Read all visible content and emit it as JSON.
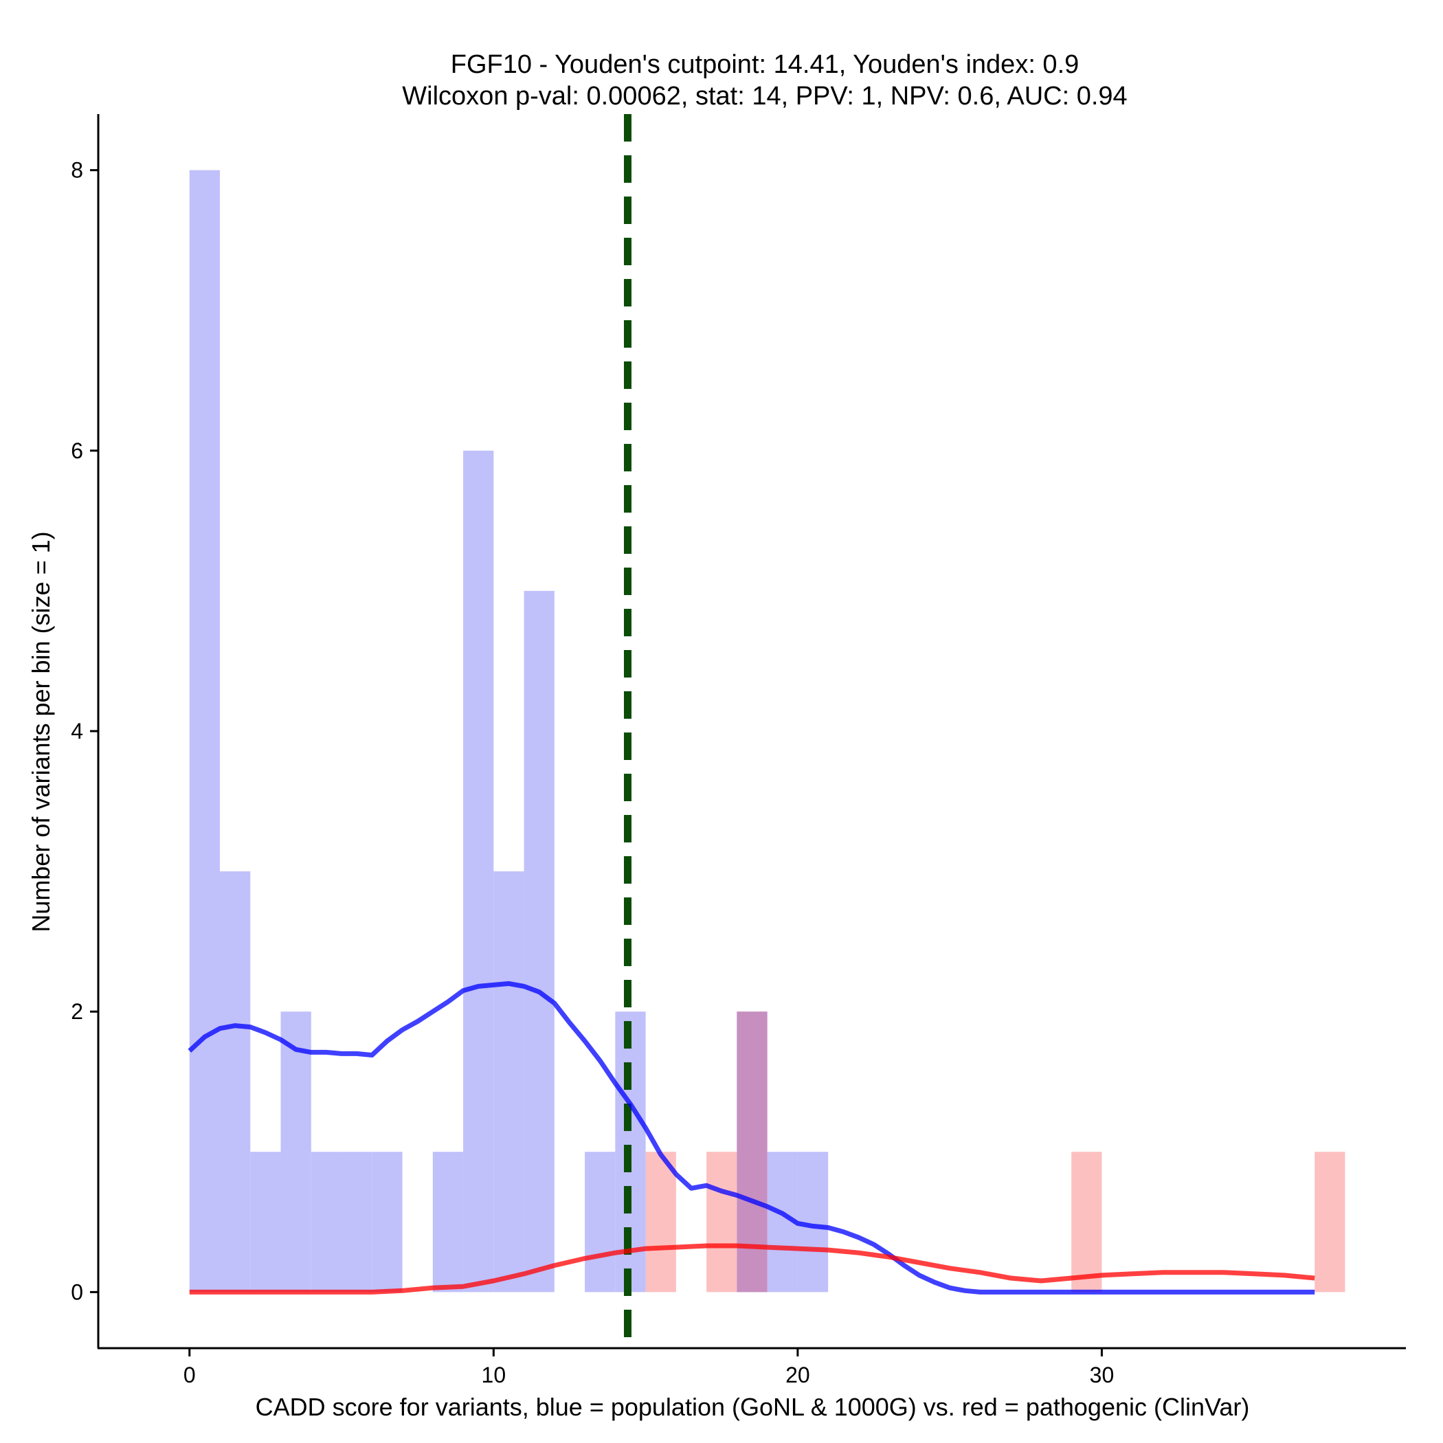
{
  "chart_data": {
    "type": "histogram",
    "title": "FGF10 - Youden's cutpoint: 14.41, Youden's index: 0.9",
    "subtitle": "Wilcoxon p-val: 0.00062, stat: 14, PPV: 1, NPV: 0.6, AUC: 0.94",
    "xlabel": "CADD score for variants, blue = population (GoNL & 1000G) vs. red = pathogenic (ClinVar)",
    "ylabel": "Number of variants per bin (size = 1)",
    "xlim": [
      -3,
      40
    ],
    "ylim": [
      -0.4,
      8.4
    ],
    "xticks": [
      0,
      10,
      20,
      30
    ],
    "yticks": [
      0,
      2,
      4,
      6,
      8
    ],
    "bin_size": 1,
    "cutpoint": 14.41,
    "colors": {
      "population": "#0000ff",
      "pathogenic": "#ff0000",
      "population_bar": "#c0c0fb",
      "pathogenic_bar": "#fdc0c0",
      "overlap_bar": "#c78fc0",
      "cutpoint": "#0b4d07"
    },
    "series": [
      {
        "name": "population (GoNL & 1000G)",
        "bins": [
          {
            "start": 0,
            "count": 8
          },
          {
            "start": 1,
            "count": 3
          },
          {
            "start": 2,
            "count": 1
          },
          {
            "start": 3,
            "count": 2
          },
          {
            "start": 4,
            "count": 1
          },
          {
            "start": 5,
            "count": 1
          },
          {
            "start": 6,
            "count": 1
          },
          {
            "start": 8,
            "count": 1
          },
          {
            "start": 9,
            "count": 6
          },
          {
            "start": 10,
            "count": 3
          },
          {
            "start": 11,
            "count": 5
          },
          {
            "start": 13,
            "count": 1
          },
          {
            "start": 14,
            "count": 2
          },
          {
            "start": 18,
            "count": 2
          },
          {
            "start": 19,
            "count": 1
          },
          {
            "start": 20,
            "count": 1
          }
        ],
        "density": [
          [
            0,
            1.72
          ],
          [
            0.5,
            1.82
          ],
          [
            1,
            1.88
          ],
          [
            1.5,
            1.9
          ],
          [
            2,
            1.89
          ],
          [
            2.5,
            1.85
          ],
          [
            3,
            1.8
          ],
          [
            3.5,
            1.73
          ],
          [
            4,
            1.71
          ],
          [
            4.5,
            1.71
          ],
          [
            5,
            1.7
          ],
          [
            5.5,
            1.7
          ],
          [
            6,
            1.69
          ],
          [
            6.5,
            1.79
          ],
          [
            7,
            1.87
          ],
          [
            7.5,
            1.93
          ],
          [
            8,
            2.0
          ],
          [
            8.5,
            2.07
          ],
          [
            9,
            2.15
          ],
          [
            9.5,
            2.18
          ],
          [
            10,
            2.19
          ],
          [
            10.5,
            2.2
          ],
          [
            11,
            2.18
          ],
          [
            11.5,
            2.14
          ],
          [
            12,
            2.06
          ],
          [
            12.5,
            1.92
          ],
          [
            13,
            1.79
          ],
          [
            13.5,
            1.65
          ],
          [
            14,
            1.49
          ],
          [
            14.5,
            1.34
          ],
          [
            15,
            1.17
          ],
          [
            15.5,
            0.98
          ],
          [
            16,
            0.84
          ],
          [
            16.5,
            0.74
          ],
          [
            17,
            0.76
          ],
          [
            17.5,
            0.72
          ],
          [
            18,
            0.69
          ],
          [
            18.5,
            0.65
          ],
          [
            19,
            0.61
          ],
          [
            19.5,
            0.56
          ],
          [
            20,
            0.49
          ],
          [
            20.5,
            0.47
          ],
          [
            21,
            0.46
          ],
          [
            21.5,
            0.43
          ],
          [
            22,
            0.39
          ],
          [
            22.5,
            0.34
          ],
          [
            23,
            0.27
          ],
          [
            23.5,
            0.19
          ],
          [
            24,
            0.12
          ],
          [
            24.5,
            0.07
          ],
          [
            25,
            0.03
          ],
          [
            25.5,
            0.01
          ],
          [
            26,
            0.0
          ],
          [
            27,
            0.0
          ],
          [
            28,
            0.0
          ],
          [
            30,
            0.0
          ],
          [
            32,
            0.0
          ],
          [
            34,
            0.0
          ],
          [
            37,
            0.0
          ]
        ]
      },
      {
        "name": "pathogenic (ClinVar)",
        "bins": [
          {
            "start": 15,
            "count": 1
          },
          {
            "start": 17,
            "count": 1
          },
          {
            "start": 18,
            "count": 2
          },
          {
            "start": 29,
            "count": 1
          },
          {
            "start": 37,
            "count": 1
          }
        ],
        "density": [
          [
            0,
            0.0
          ],
          [
            2,
            0.0
          ],
          [
            4,
            0.0
          ],
          [
            6,
            0.0
          ],
          [
            7,
            0.01
          ],
          [
            8,
            0.03
          ],
          [
            9,
            0.04
          ],
          [
            10,
            0.08
          ],
          [
            11,
            0.13
          ],
          [
            12,
            0.19
          ],
          [
            13,
            0.24
          ],
          [
            14,
            0.28
          ],
          [
            15,
            0.31
          ],
          [
            16,
            0.32
          ],
          [
            17,
            0.33
          ],
          [
            18,
            0.33
          ],
          [
            19,
            0.32
          ],
          [
            20,
            0.31
          ],
          [
            21,
            0.3
          ],
          [
            22,
            0.28
          ],
          [
            23,
            0.25
          ],
          [
            24,
            0.21
          ],
          [
            25,
            0.17
          ],
          [
            26,
            0.14
          ],
          [
            27,
            0.1
          ],
          [
            28,
            0.08
          ],
          [
            29,
            0.1
          ],
          [
            30,
            0.12
          ],
          [
            31,
            0.13
          ],
          [
            32,
            0.14
          ],
          [
            33,
            0.14
          ],
          [
            34,
            0.14
          ],
          [
            35,
            0.13
          ],
          [
            36,
            0.12
          ],
          [
            37,
            0.1
          ]
        ]
      }
    ]
  }
}
